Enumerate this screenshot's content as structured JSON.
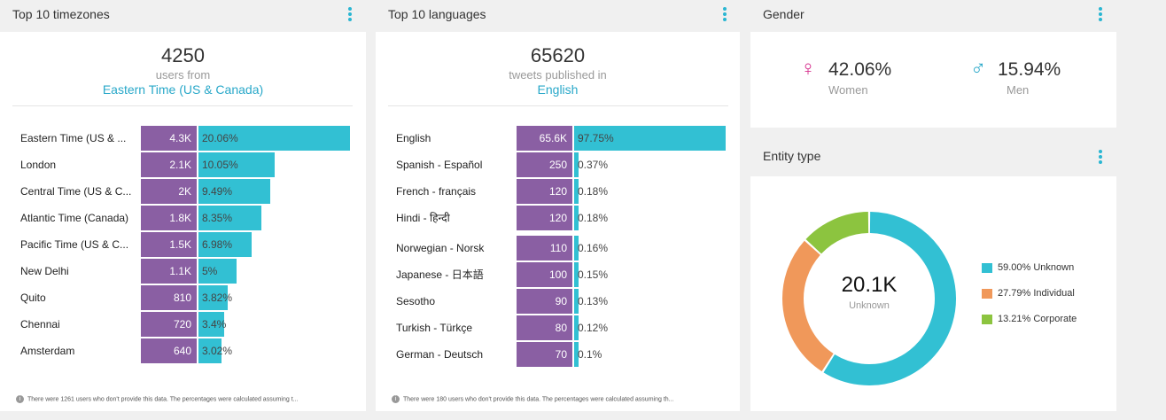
{
  "timezones": {
    "title": "Top 10 timezones",
    "total": "4250",
    "subtitle": "users from",
    "highlight": "Eastern Time (US & Canada)",
    "rows": [
      {
        "label": "Eastern Time (US & ...",
        "count": "4.3K",
        "pct": "20.06%",
        "value": 20.06
      },
      {
        "label": "London",
        "count": "2.1K",
        "pct": "10.05%",
        "value": 10.05
      },
      {
        "label": "Central Time (US & C...",
        "count": "2K",
        "pct": "9.49%",
        "value": 9.49
      },
      {
        "label": "Atlantic Time (Canada)",
        "count": "1.8K",
        "pct": "8.35%",
        "value": 8.35
      },
      {
        "label": "Pacific Time (US & C...",
        "count": "1.5K",
        "pct": "6.98%",
        "value": 6.98
      },
      {
        "label": "New Delhi",
        "count": "1.1K",
        "pct": "5%",
        "value": 5
      },
      {
        "label": "Quito",
        "count": "810",
        "pct": "3.82%",
        "value": 3.82
      },
      {
        "label": "Chennai",
        "count": "720",
        "pct": "3.4%",
        "value": 3.4
      },
      {
        "label": "Amsterdam",
        "count": "640",
        "pct": "3.02%",
        "value": 3.02
      }
    ],
    "footnote": "There were 1261 users who don't provide this data. The percentages were calculated assuming t..."
  },
  "languages": {
    "title": "Top 10 languages",
    "total": "65620",
    "subtitle": "tweets published in",
    "highlight": "English",
    "rows": [
      {
        "label": "English",
        "count": "65.6K",
        "pct": "97.75%",
        "value": 97.75
      },
      {
        "label": "Spanish - Español",
        "count": "250",
        "pct": "0.37%",
        "value": 0.37
      },
      {
        "label": "French - français",
        "count": "120",
        "pct": "0.18%",
        "value": 0.18
      },
      {
        "label": "Hindi - हिन्दी",
        "count": "120",
        "pct": "0.18%",
        "value": 0.18
      },
      {
        "label": "Norwegian - Norsk",
        "count": "110",
        "pct": "0.16%",
        "value": 0.16
      },
      {
        "label": "Japanese - 日本語",
        "count": "100",
        "pct": "0.15%",
        "value": 0.15
      },
      {
        "label": "Sesotho",
        "count": "90",
        "pct": "0.13%",
        "value": 0.13
      },
      {
        "label": "Turkish - Türkçe",
        "count": "80",
        "pct": "0.12%",
        "value": 0.12
      },
      {
        "label": "German - Deutsch",
        "count": "70",
        "pct": "0.1%",
        "value": 0.1
      }
    ],
    "footnote": "There were 180 users who don't provide this data. The percentages were calculated assuming th..."
  },
  "gender": {
    "title": "Gender",
    "women_pct": "42.06%",
    "women_label": "Women",
    "men_pct": "15.94%",
    "men_label": "Men",
    "women_color": "#d62f8d",
    "men_color": "#29a8c9"
  },
  "entity": {
    "title": "Entity type",
    "center_value": "20.1K",
    "center_label": "Unknown",
    "legend": [
      {
        "label": "59.00% Unknown",
        "color": "#32c0d3"
      },
      {
        "label": "27.79% Individual",
        "color": "#f0985a"
      },
      {
        "label": "13.21% Corporate",
        "color": "#8cc43f"
      }
    ]
  },
  "chart_data": {
    "type": "pie",
    "labels": [
      "Unknown",
      "Individual",
      "Corporate"
    ],
    "values": [
      59.0,
      27.79,
      13.21
    ],
    "colors": [
      "#32c0d3",
      "#f0985a",
      "#8cc43f"
    ]
  }
}
